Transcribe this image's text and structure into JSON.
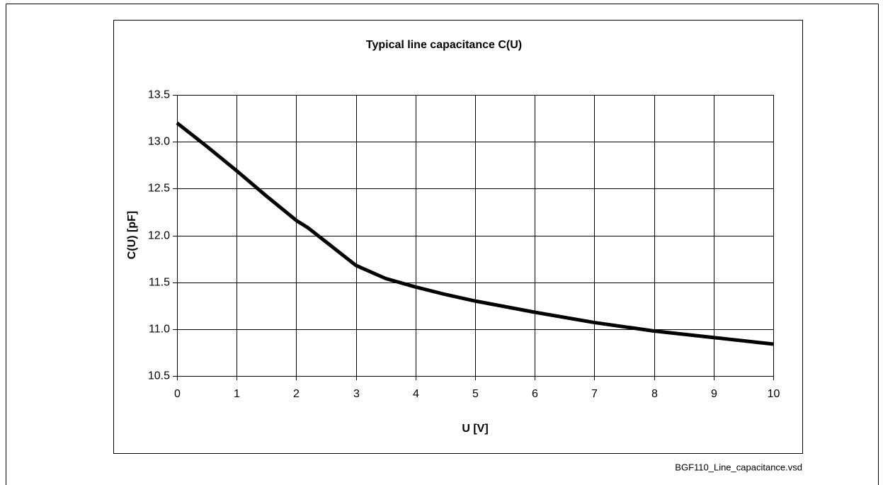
{
  "chart_data": {
    "type": "line",
    "title": "Typical line capacitance C(U)",
    "x_label": "U [V]",
    "y_label": "C(U) [pF]",
    "footnote": "BGF110_Line_capacitance.vsd",
    "x": [
      0,
      0.5,
      1,
      1.5,
      2,
      2.2,
      2.5,
      3,
      3.5,
      4,
      4.5,
      5,
      6,
      7,
      8,
      9,
      10
    ],
    "series": [
      {
        "name": "C(U)",
        "color": "#000000",
        "values": [
          13.2,
          12.95,
          12.69,
          12.42,
          12.16,
          12.08,
          11.93,
          11.68,
          11.54,
          11.45,
          11.37,
          11.3,
          11.18,
          11.07,
          10.98,
          10.91,
          10.84
        ]
      }
    ],
    "xlim": [
      0,
      10
    ],
    "xticks": [
      0,
      1,
      2,
      3,
      4,
      5,
      6,
      7,
      8,
      9,
      10
    ],
    "ylim": [
      10.5,
      13.5
    ],
    "yticks": [
      10.5,
      {
        "value": 11,
        "label": "11.0"
      },
      11.5,
      {
        "value": 12,
        "label": "12.0"
      },
      12.5,
      {
        "value": 13,
        "label": "13.0"
      },
      13.5
    ],
    "grid": true
  }
}
